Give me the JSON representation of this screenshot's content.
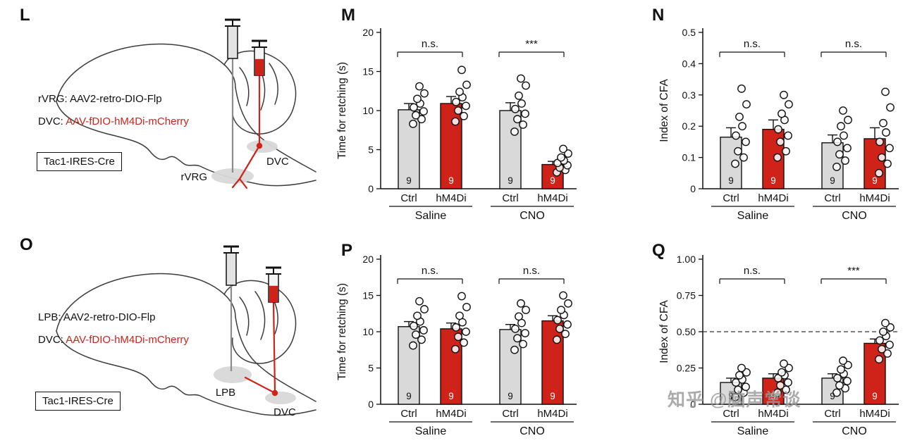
{
  "colors": {
    "bar_gray": "#d9d9d9",
    "bar_red": "#cf231a",
    "axis": "#111111",
    "brain_outline": "#3c3c3c",
    "site_fill": "#d8d8d8",
    "watermark": "#979797"
  },
  "figure": {
    "watermark": "知乎 @脑声常谈"
  },
  "diagrams": [
    {
      "panel_label": "L",
      "line1": "rVRG: AAV2-retro-DIO-Flp",
      "line2_prefix": "DVC: ",
      "line2_virus": "AAV-fDIO-hM4Di-mCherry",
      "mouse_line": "Tac1-IRES-Cre",
      "site1": "rVRG",
      "site2": "DVC"
    },
    {
      "panel_label": "O",
      "line1": "LPB: AAV2-retro-DIO-Flp",
      "line2_prefix": "DVC: ",
      "line2_virus": "AAV-fDIO-hM4Di-mCherry",
      "mouse_line": "Tac1-IRES-Cre",
      "site1": "LPB",
      "site2": "DVC"
    }
  ],
  "chart_data": [
    {
      "id": "M",
      "panel_label": "M",
      "type": "bar",
      "ylabel": "Time for retching (s)",
      "ylim": [
        0,
        20
      ],
      "ytick_values": [
        0,
        5,
        10,
        15,
        20
      ],
      "ytick_labels": [
        "0",
        "5",
        "10",
        "15",
        "20"
      ],
      "groups": [
        "Saline",
        "CNO"
      ],
      "categories": [
        "Ctrl",
        "hM4Di",
        "Ctrl",
        "hM4Di"
      ],
      "values": [
        10.1,
        10.9,
        10.0,
        3.1
      ],
      "errors": [
        0.8,
        0.9,
        1.0,
        0.4
      ],
      "n": [
        9,
        9,
        9,
        9
      ],
      "bar_colors": [
        "gray",
        "red",
        "gray",
        "red"
      ],
      "points": [
        [
          8.3,
          8.9,
          9.4,
          9.9,
          10.4,
          10.9,
          11.5,
          12.2,
          13.1
        ],
        [
          8.6,
          9.3,
          10.0,
          10.6,
          11.1,
          11.7,
          12.4,
          13.3,
          15.2
        ],
        [
          7.3,
          8.2,
          8.9,
          9.6,
          10.2,
          10.9,
          11.9,
          13.2,
          14.1
        ],
        [
          2.1,
          2.4,
          2.7,
          3.0,
          3.3,
          3.6,
          4.0,
          4.5,
          5.1
        ]
      ],
      "significance": [
        {
          "from": 0,
          "to": 1,
          "label": "n.s."
        },
        {
          "from": 2,
          "to": 3,
          "label": "***"
        }
      ],
      "dashed_line": null
    },
    {
      "id": "N",
      "panel_label": "N",
      "type": "bar",
      "ylabel": "Index of CFA",
      "ylim": [
        0,
        0.5
      ],
      "ytick_values": [
        0,
        0.1,
        0.2,
        0.3,
        0.4,
        0.5
      ],
      "ytick_labels": [
        "0",
        "0.1",
        "0.2",
        "0.3",
        "0.4",
        "0.5"
      ],
      "groups": [
        "Saline",
        "CNO"
      ],
      "categories": [
        "Ctrl",
        "hM4Di",
        "Ctrl",
        "hM4Di"
      ],
      "values": [
        0.165,
        0.19,
        0.147,
        0.16
      ],
      "errors": [
        0.03,
        0.03,
        0.025,
        0.035
      ],
      "n": [
        9,
        9,
        9,
        9
      ],
      "bar_colors": [
        "gray",
        "red",
        "gray",
        "red"
      ],
      "points": [
        [
          0.08,
          0.1,
          0.12,
          0.15,
          0.17,
          0.2,
          0.23,
          0.27,
          0.32
        ],
        [
          0.1,
          0.12,
          0.15,
          0.17,
          0.19,
          0.22,
          0.24,
          0.27,
          0.3
        ],
        [
          0.07,
          0.09,
          0.11,
          0.13,
          0.15,
          0.17,
          0.2,
          0.22,
          0.25
        ],
        [
          0.05,
          0.08,
          0.1,
          0.13,
          0.15,
          0.18,
          0.21,
          0.26,
          0.31
        ]
      ],
      "significance": [
        {
          "from": 0,
          "to": 1,
          "label": "n.s."
        },
        {
          "from": 2,
          "to": 3,
          "label": "n.s."
        }
      ],
      "dashed_line": null
    },
    {
      "id": "P",
      "panel_label": "P",
      "type": "bar",
      "ylabel": "Time for retching (s)",
      "ylim": [
        0,
        20
      ],
      "ytick_values": [
        0,
        5,
        10,
        15,
        20
      ],
      "ytick_labels": [
        "0",
        "5",
        "10",
        "15",
        "20"
      ],
      "groups": [
        "Saline",
        "CNO"
      ],
      "categories": [
        "Ctrl",
        "hM4Di",
        "Ctrl",
        "hM4Di"
      ],
      "values": [
        10.7,
        10.4,
        10.3,
        11.5
      ],
      "errors": [
        0.7,
        0.8,
        0.7,
        0.7
      ],
      "n": [
        9,
        9,
        9,
        9
      ],
      "bar_colors": [
        "gray",
        "red",
        "gray",
        "red"
      ],
      "points": [
        [
          8.1,
          8.9,
          9.6,
          10.2,
          10.8,
          11.4,
          12.2,
          13.1,
          14.2
        ],
        [
          7.6,
          8.5,
          9.3,
          10.0,
          10.6,
          11.3,
          12.2,
          13.4,
          14.9
        ],
        [
          7.5,
          8.3,
          9.1,
          9.8,
          10.4,
          11.2,
          12.1,
          13.0,
          13.9
        ],
        [
          8.9,
          9.7,
          10.4,
          11.0,
          11.6,
          12.3,
          13.0,
          13.9,
          15.0
        ]
      ],
      "significance": [
        {
          "from": 0,
          "to": 1,
          "label": "n.s."
        },
        {
          "from": 2,
          "to": 3,
          "label": "n.s."
        }
      ],
      "dashed_line": null
    },
    {
      "id": "Q",
      "panel_label": "Q",
      "type": "bar",
      "ylabel": "Index of CFA",
      "ylim": [
        0,
        1.0
      ],
      "ytick_values": [
        0,
        0.25,
        0.5,
        0.75,
        1.0
      ],
      "ytick_labels": [
        "0",
        "0.25",
        "0.50",
        "0.75",
        "1.00"
      ],
      "groups": [
        "Saline",
        "CNO"
      ],
      "categories": [
        "Ctrl",
        "hM4Di",
        "Ctrl",
        "hM4Di"
      ],
      "values": [
        0.15,
        0.18,
        0.18,
        0.42
      ],
      "errors": [
        0.03,
        0.03,
        0.03,
        0.03
      ],
      "n": [
        9,
        9,
        9,
        9
      ],
      "bar_colors": [
        "gray",
        "red",
        "gray",
        "red"
      ],
      "points": [
        [
          0.05,
          0.08,
          0.1,
          0.12,
          0.15,
          0.17,
          0.2,
          0.22,
          0.25
        ],
        [
          0.08,
          0.1,
          0.13,
          0.15,
          0.18,
          0.2,
          0.22,
          0.25,
          0.28
        ],
        [
          0.08,
          0.11,
          0.13,
          0.16,
          0.18,
          0.21,
          0.24,
          0.27,
          0.3
        ],
        [
          0.31,
          0.35,
          0.38,
          0.41,
          0.44,
          0.47,
          0.5,
          0.53,
          0.56
        ]
      ],
      "significance": [
        {
          "from": 0,
          "to": 1,
          "label": "n.s."
        },
        {
          "from": 2,
          "to": 3,
          "label": "***"
        }
      ],
      "dashed_line": 0.5
    }
  ]
}
